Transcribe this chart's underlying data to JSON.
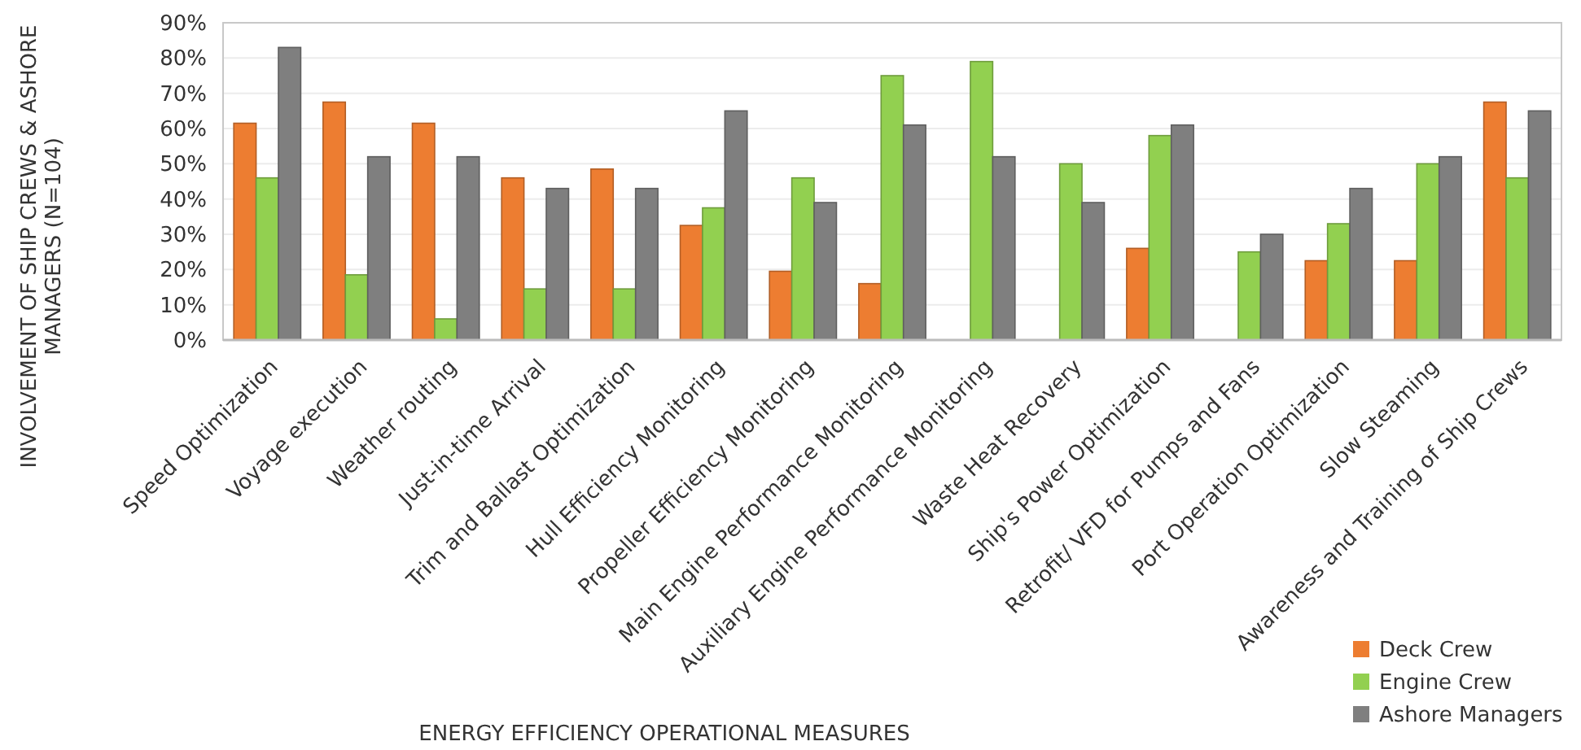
{
  "chart_data": {
    "type": "bar",
    "xlabel": "ENERGY EFFICIENCY OPERATIONAL MEASURES",
    "ylabel": "INVOLVEMENT OF SHIP CREWS & ASHORE MANAGERS (N=104)",
    "categories": [
      "Speed Optimization",
      "Voyage execution",
      "Weather routing",
      "Just-in-time Arrival",
      "Trim and Ballast Optimization",
      "Hull Efficiency Monitoring",
      "Propeller Efficiency Monitoring",
      "Main Engine Performance Monitoring",
      "Auxiliary Engine Performance Monitoring",
      "Waste Heat Recovery",
      "Ship's Power Optimization",
      "Retrofit/ VFD for Pumps and Fans",
      "Port Operation Optimization",
      "Slow Steaming",
      "Awareness and Training of Ship Crews"
    ],
    "series": [
      {
        "name": "Deck Crew",
        "color": "#ed7d31",
        "values": [
          61.5,
          67.5,
          61.5,
          46,
          48.5,
          32.5,
          19.5,
          16,
          0,
          0,
          26,
          0,
          22.5,
          22.5,
          67.5
        ]
      },
      {
        "name": "Engine Crew",
        "color": "#92d050",
        "values": [
          46,
          18.5,
          6,
          14.5,
          14.5,
          37.5,
          46,
          75,
          79,
          50,
          58,
          25,
          33,
          50,
          46
        ]
      },
      {
        "name": "Ashore Managers",
        "color": "#7f7f7f",
        "values": [
          83,
          52,
          52,
          43,
          43,
          65,
          39,
          61,
          52,
          39,
          61,
          30,
          43,
          52,
          65
        ]
      }
    ],
    "ylim": [
      0,
      90
    ],
    "yticks": [
      {
        "value": 0,
        "label": "0%"
      },
      {
        "value": 10,
        "label": "10%"
      },
      {
        "value": 20,
        "label": "20%"
      },
      {
        "value": 30,
        "label": "30%"
      },
      {
        "value": 40,
        "label": "40%"
      },
      {
        "value": 50,
        "label": "50%"
      },
      {
        "value": 60,
        "label": "60%"
      },
      {
        "value": 70,
        "label": "70%"
      },
      {
        "value": 80,
        "label": "80%"
      },
      {
        "value": 90,
        "label": "90%"
      }
    ],
    "grid": "y",
    "legend": "bottom right"
  }
}
